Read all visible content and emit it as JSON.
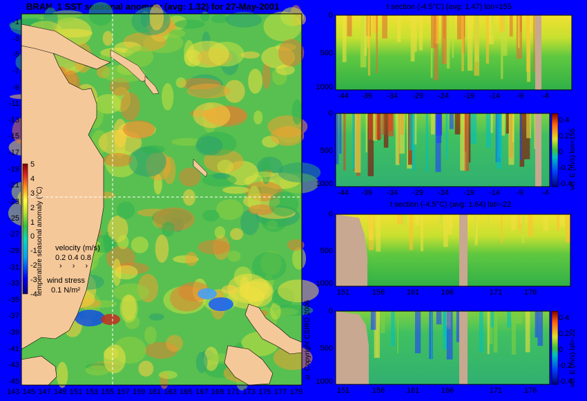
{
  "map": {
    "title": "BRAN_1 SST seasonal anomaly  (avg: 1.32) for 27-May-2001",
    "y_ticks": [
      "-1",
      "-3",
      "-5",
      "-7",
      "-9",
      "-11",
      "-13",
      "-15",
      "-17",
      "-19",
      "-21",
      "-23",
      "-25",
      "-27",
      "-29",
      "-31",
      "-33",
      "-35",
      "-37",
      "-39",
      "-41",
      "-43",
      "-45"
    ],
    "x_ticks": [
      "143",
      "145",
      "147",
      "149",
      "151",
      "153",
      "155",
      "157",
      "159",
      "161",
      "163",
      "165",
      "167",
      "169",
      "171",
      "173",
      "175",
      "177",
      "179"
    ],
    "colorbar": {
      "label": "temperature seasonal anomaly (°C)",
      "ticks": [
        "5",
        "4",
        "3",
        "2",
        "1",
        "0",
        "-1",
        "-2",
        "-3",
        "-4"
      ]
    },
    "velocity_legend": {
      "title": "velocity (m/s)",
      "values": "0.2 0.4 0.8"
    },
    "wind_legend": {
      "title": "wind stress",
      "value": "0.1 N/m²"
    },
    "colors": {
      "land": "#f5c89a",
      "ocean_base": "#3cb44b",
      "warm": "#f5e03c",
      "hot": "#d2691e"
    }
  },
  "copyright": "© Copyright CSIRO 2006",
  "panels": [
    {
      "title": "t section (-4.5°C) (avg: 1.47) lon=155",
      "x_ticks": [
        "-44",
        "-39",
        "-34",
        "-29",
        "-24",
        "-19",
        "-14",
        "-9",
        "-4"
      ],
      "y_ticks": [
        "0",
        "500",
        "1000"
      ]
    },
    {
      "title": "",
      "x_ticks": [
        "-44",
        "-39",
        "-34",
        "-29",
        "-24",
        "-19",
        "-14",
        "-9",
        "-4"
      ],
      "y_ticks": [
        "0",
        "500",
        "1000"
      ],
      "colorbar": {
        "label": "vel. E (m/s) lon=155",
        "ticks": [
          "0.4",
          "0.2",
          "0",
          "-0.2",
          "-0.4"
        ]
      }
    },
    {
      "title": "t section (-4.5°C) (avg: 1.64) lat=-22",
      "x_ticks": [
        "151",
        "156",
        "161",
        "166",
        "171",
        "176"
      ],
      "y_ticks": [
        "0",
        "500",
        "1000"
      ]
    },
    {
      "title": "",
      "x_ticks": [
        "151",
        "156",
        "161",
        "166",
        "171",
        "176"
      ],
      "y_ticks": [
        "0",
        "500",
        "1000"
      ],
      "colorbar": {
        "label": "vel. E (m/s) lat=-22",
        "ticks": [
          "0.4",
          "0.2",
          "0",
          "-0.2",
          "-0.4"
        ]
      }
    }
  ],
  "chart_data": [
    {
      "type": "heatmap",
      "title": "BRAN_1 SST seasonal anomaly  (avg: 1.32) for 27-May-2001",
      "x_range": [
        143,
        179
      ],
      "y_range": [
        -45,
        -1
      ],
      "color_range": [
        -4,
        5
      ],
      "grid": false
    },
    {
      "type": "heatmap",
      "title": "t section (-4.5°C) (avg: 1.47) lon=155",
      "x_range": [
        -44,
        -1
      ],
      "y_range": [
        1050,
        0
      ]
    },
    {
      "type": "heatmap",
      "title": "",
      "x_range": [
        -44,
        -1
      ],
      "y_range": [
        1050,
        0
      ],
      "color_range": [
        -0.4,
        0.4
      ]
    },
    {
      "type": "heatmap",
      "title": "t section (-4.5°C) (avg: 1.64) lat=-22",
      "x_range": [
        150,
        180
      ],
      "y_range": [
        1050,
        0
      ]
    },
    {
      "type": "heatmap",
      "title": "",
      "x_range": [
        150,
        180
      ],
      "y_range": [
        1050,
        0
      ],
      "color_range": [
        -0.4,
        0.4
      ]
    }
  ]
}
